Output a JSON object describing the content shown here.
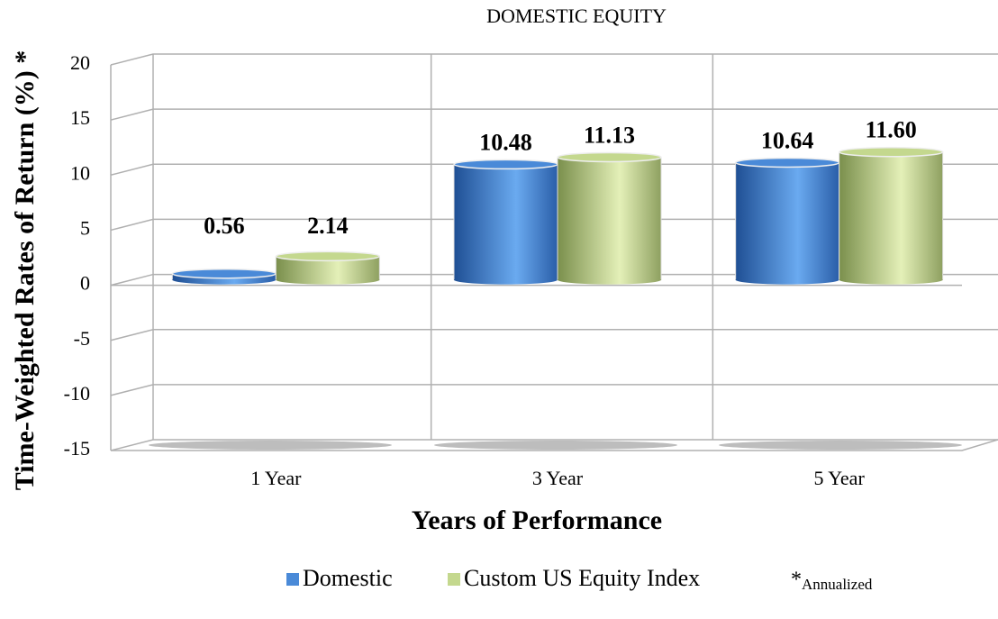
{
  "chart_data": {
    "type": "bar",
    "title": "DOMESTIC EQUITY",
    "x_label": "Years of Performance",
    "y_label": "Time-Weighted Rates of Return (%) *",
    "categories": [
      "1 Year",
      "3 Year",
      "5 Year"
    ],
    "series": [
      {
        "name": "Domestic",
        "color": "#4a8ad8",
        "values": [
          0.56,
          10.48,
          10.64
        ],
        "value_labels": [
          "0.56",
          "10.48",
          "10.64"
        ]
      },
      {
        "name": "Custom US Equity Index",
        "color": "#c4d88e",
        "values": [
          2.14,
          11.13,
          11.6
        ],
        "value_labels": [
          "2.14",
          "11.13",
          "11.60"
        ]
      }
    ],
    "ylim": [
      -15,
      20
    ],
    "yticks": [
      20,
      15,
      10,
      5,
      0,
      -5,
      -10,
      -15
    ],
    "grid": true,
    "annotations": [
      "*",
      "Annualized"
    ]
  }
}
